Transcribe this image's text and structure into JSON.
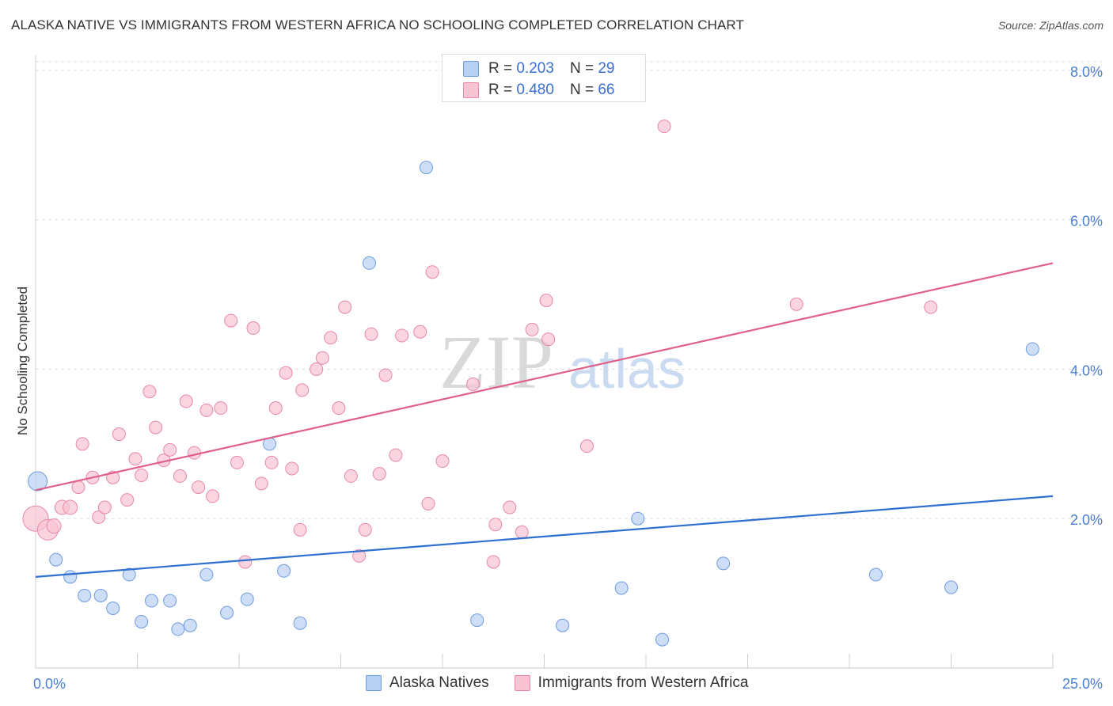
{
  "header": {
    "title": "ALASKA NATIVE VS IMMIGRANTS FROM WESTERN AFRICA NO SCHOOLING COMPLETED CORRELATION CHART",
    "source": "Source: ZipAtlas.com"
  },
  "watermark": {
    "zip": "ZIP",
    "atlas": "atlas"
  },
  "legend_top": {
    "rows": [
      {
        "r_label": "R =",
        "r_value": "0.203",
        "n_label": "N =",
        "n_value": "29"
      },
      {
        "r_label": "R =",
        "r_value": "0.480",
        "n_label": "N =",
        "n_value": "66"
      }
    ]
  },
  "colors": {
    "blue_fill": "#b8d0f2",
    "blue_stroke": "#6f9be0",
    "blue_line": "#2f6fd0",
    "pink_fill": "#f8c3d3",
    "pink_stroke": "#e887a6",
    "pink_line": "#e0608a",
    "tick_text": "#4a7fd4"
  },
  "chart_data": {
    "type": "scatter",
    "title": "ALASKA NATIVE VS IMMIGRANTS FROM WESTERN AFRICA NO SCHOOLING COMPLETED CORRELATION CHART",
    "xlabel": "",
    "ylabel": "No Schooling Completed",
    "xlim": [
      0,
      25
    ],
    "ylim": [
      0,
      8.2
    ],
    "x_tick_labels": [
      "0.0%",
      "25.0%"
    ],
    "y_ticks": [
      2,
      4,
      6,
      8
    ],
    "y_tick_labels": [
      "2.0%",
      "4.0%",
      "6.0%",
      "8.0%"
    ],
    "grid": true,
    "legend_position": "bottom-center",
    "series": [
      {
        "name": "Alaska Natives",
        "color": "#b8d0f2",
        "trend": [
          [
            0,
            1.22
          ],
          [
            25,
            2.3
          ]
        ],
        "points": [
          [
            0.05,
            2.5,
            12
          ],
          [
            0.5,
            1.45,
            8
          ],
          [
            0.85,
            1.22,
            8
          ],
          [
            1.2,
            0.97,
            8
          ],
          [
            1.6,
            0.97,
            8
          ],
          [
            1.9,
            0.8,
            8
          ],
          [
            2.3,
            1.25,
            8
          ],
          [
            2.6,
            0.62,
            8
          ],
          [
            2.85,
            0.9,
            8
          ],
          [
            3.3,
            0.9,
            8
          ],
          [
            3.5,
            0.52,
            8
          ],
          [
            3.8,
            0.57,
            8
          ],
          [
            4.2,
            1.25,
            8
          ],
          [
            4.7,
            0.74,
            8
          ],
          [
            5.2,
            0.92,
            8
          ],
          [
            5.75,
            3.0,
            8
          ],
          [
            6.1,
            1.3,
            8
          ],
          [
            6.5,
            0.6,
            8
          ],
          [
            8.2,
            5.42,
            8
          ],
          [
            9.6,
            6.7,
            8
          ],
          [
            10.85,
            0.64,
            8
          ],
          [
            12.95,
            0.57,
            8
          ],
          [
            14.4,
            1.07,
            8
          ],
          [
            14.8,
            2.0,
            8
          ],
          [
            15.4,
            0.38,
            8
          ],
          [
            16.9,
            1.4,
            8
          ],
          [
            20.65,
            1.25,
            8
          ],
          [
            22.5,
            1.08,
            8
          ],
          [
            24.5,
            4.27,
            8
          ]
        ]
      },
      {
        "name": "Immigrants from Western Africa",
        "color": "#f8c3d3",
        "trend": [
          [
            0,
            2.38
          ],
          [
            25,
            5.42
          ]
        ],
        "points": [
          [
            0.0,
            2.0,
            16
          ],
          [
            0.3,
            1.85,
            13
          ],
          [
            0.45,
            1.9,
            9
          ],
          [
            0.65,
            2.15,
            9
          ],
          [
            0.85,
            2.15,
            9
          ],
          [
            1.05,
            2.42,
            8
          ],
          [
            1.15,
            3.0,
            8
          ],
          [
            1.4,
            2.55,
            8
          ],
          [
            1.55,
            2.02,
            8
          ],
          [
            1.7,
            2.15,
            8
          ],
          [
            1.9,
            2.55,
            8
          ],
          [
            2.05,
            3.13,
            8
          ],
          [
            2.25,
            2.25,
            8
          ],
          [
            2.45,
            2.8,
            8
          ],
          [
            2.6,
            2.58,
            8
          ],
          [
            2.8,
            3.7,
            8
          ],
          [
            2.95,
            3.22,
            8
          ],
          [
            3.15,
            2.78,
            8
          ],
          [
            3.3,
            2.92,
            8
          ],
          [
            3.55,
            2.57,
            8
          ],
          [
            3.7,
            3.57,
            8
          ],
          [
            3.9,
            2.88,
            8
          ],
          [
            4.0,
            2.42,
            8
          ],
          [
            4.2,
            3.45,
            8
          ],
          [
            4.35,
            2.3,
            8
          ],
          [
            4.55,
            3.48,
            8
          ],
          [
            4.8,
            4.65,
            8
          ],
          [
            4.95,
            2.75,
            8
          ],
          [
            5.15,
            1.42,
            8
          ],
          [
            5.35,
            4.55,
            8
          ],
          [
            5.55,
            2.47,
            8
          ],
          [
            5.8,
            2.75,
            8
          ],
          [
            5.9,
            3.48,
            8
          ],
          [
            6.15,
            3.95,
            8
          ],
          [
            6.3,
            2.67,
            8
          ],
          [
            6.5,
            1.85,
            8
          ],
          [
            6.55,
            3.72,
            8
          ],
          [
            6.9,
            4.0,
            8
          ],
          [
            7.05,
            4.15,
            8
          ],
          [
            7.25,
            4.42,
            8
          ],
          [
            7.45,
            3.48,
            8
          ],
          [
            7.6,
            4.83,
            8
          ],
          [
            7.75,
            2.57,
            8
          ],
          [
            7.95,
            1.5,
            8
          ],
          [
            8.1,
            1.85,
            8
          ],
          [
            8.25,
            4.47,
            8
          ],
          [
            8.45,
            2.6,
            8
          ],
          [
            8.6,
            3.92,
            8
          ],
          [
            8.85,
            2.85,
            8
          ],
          [
            9.0,
            4.45,
            8
          ],
          [
            9.45,
            4.5,
            8
          ],
          [
            9.65,
            2.2,
            8
          ],
          [
            9.75,
            5.3,
            8
          ],
          [
            10.0,
            2.77,
            8
          ],
          [
            10.75,
            3.8,
            8
          ],
          [
            11.25,
            1.42,
            8
          ],
          [
            11.3,
            1.92,
            8
          ],
          [
            11.65,
            2.15,
            8
          ],
          [
            11.95,
            1.82,
            8
          ],
          [
            12.2,
            4.53,
            8
          ],
          [
            12.55,
            4.92,
            8
          ],
          [
            12.6,
            4.4,
            8
          ],
          [
            13.55,
            2.97,
            8
          ],
          [
            15.45,
            7.25,
            8
          ],
          [
            18.7,
            4.87,
            8
          ],
          [
            22.0,
            4.83,
            8
          ]
        ]
      }
    ]
  },
  "legend_bottom": {
    "items": [
      "Alaska Natives",
      "Immigrants from Western Africa"
    ]
  }
}
